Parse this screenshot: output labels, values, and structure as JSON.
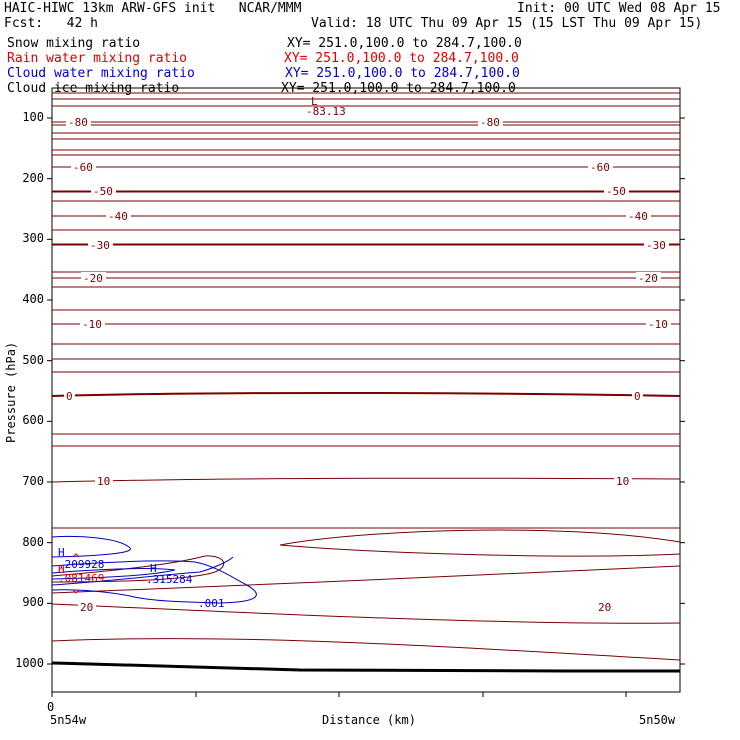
{
  "header": {
    "title_left": "HAIC-HIWC 13km ARW-GFS init   NCAR/MMM",
    "init": "Init: 00 UTC Wed 08 Apr 15",
    "fcst": "Fcst:   42 h",
    "valid": "Valid: 18 UTC Thu 09 Apr 15 (15 LST Thu 09 Apr 15)",
    "fields": [
      {
        "name": "Snow mixing ratio",
        "xy": "XY= 251.0,100.0 to 284.7,100.0",
        "color": "#000000"
      },
      {
        "name": "Rain water mixing ratio",
        "xy": "XY= 251.0,100.0 to 284.7,100.0",
        "color": "#e00000"
      },
      {
        "name": "Cloud water mixing ratio",
        "xy": "XY= 251.0,100.0 to 284.7,100.0",
        "color": "#0000c8"
      },
      {
        "name": "Cloud ice mixing ratio",
        "xy": "XY= 251.0,100.0 to 284.7,100.0",
        "color": "#000000"
      }
    ]
  },
  "chart_data": {
    "type": "line",
    "ylabel": "Pressure (hPa)",
    "xlabel": "Distance (km)",
    "x_start_tick": "0",
    "x_left_label": "5n54w",
    "x_right_label": "5n50w",
    "y_ticks": [
      100,
      200,
      300,
      400,
      500,
      600,
      700,
      800,
      900,
      1000
    ],
    "ylim": [
      1050,
      50
    ],
    "xlim": [
      0,
      100
    ],
    "contour_color": "#7a0000",
    "temperature_contours_C": [
      {
        "value": -80,
        "left_label": "-80",
        "right_label": "-80"
      },
      {
        "value": -60,
        "left_label": "-60",
        "right_label": "-60"
      },
      {
        "value": -50,
        "left_label": "-50",
        "right_label": "-50"
      },
      {
        "value": -40,
        "left_label": "-40",
        "right_label": "-40"
      },
      {
        "value": -30,
        "left_label": "-30",
        "right_label": "-30"
      },
      {
        "value": -20,
        "left_label": "-20",
        "right_label": "-20"
      },
      {
        "value": -10,
        "left_label": "-10",
        "right_label": "-10"
      },
      {
        "value": 0,
        "left_label": "0",
        "right_label": "0"
      },
      {
        "value": 10,
        "left_label": "10",
        "right_label": "10"
      },
      {
        "value": 20,
        "left_label": "20",
        "right_label": "20"
      }
    ],
    "annotations": [
      {
        "text": "L",
        "color": "#7a0000"
      },
      {
        "text": "-83.13",
        "color": "#7a0000"
      },
      {
        "text": "H",
        "color": "#0000c8"
      },
      {
        "text": ".209928",
        "color": "#0000c8"
      },
      {
        "text": "H",
        "color": "#e00000"
      },
      {
        "text": ".081469",
        "color": "#e00000"
      },
      {
        "text": "H",
        "color": "#0000c8"
      },
      {
        "text": ".315284",
        "color": "#0000c8"
      },
      {
        "text": ".001",
        "color": "#0000c8"
      }
    ]
  }
}
